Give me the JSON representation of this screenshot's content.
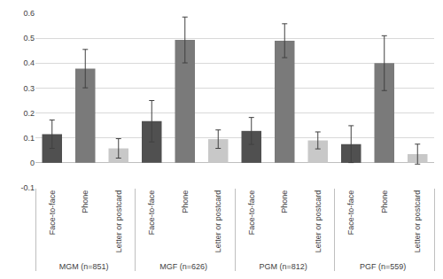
{
  "chart_data": {
    "type": "bar",
    "categories": [
      "MGM (n=851)",
      "MGF (n=626)",
      "PGM (n=812)",
      "PGF (n=559)"
    ],
    "series": [
      {
        "name": "Face-to-face",
        "color": "#505050",
        "values": [
          0.115,
          0.167,
          0.128,
          0.075
        ],
        "errors": [
          0.057,
          0.083,
          0.054,
          0.074
        ]
      },
      {
        "name": "Phone",
        "color": "#7a7a7a",
        "values": [
          0.378,
          0.493,
          0.49,
          0.4
        ],
        "errors": [
          0.077,
          0.092,
          0.068,
          0.11
        ]
      },
      {
        "name": "Letter or postcard",
        "color": "#c8c8c8",
        "values": [
          0.058,
          0.095,
          0.09,
          0.035
        ],
        "errors": [
          0.039,
          0.037,
          0.034,
          0.04
        ]
      }
    ],
    "ylim": [
      -0.1,
      0.6
    ],
    "yticks": [
      -0.1,
      0,
      0.1,
      0.2,
      0.3,
      0.4,
      0.5,
      0.6
    ],
    "grid": true
  }
}
